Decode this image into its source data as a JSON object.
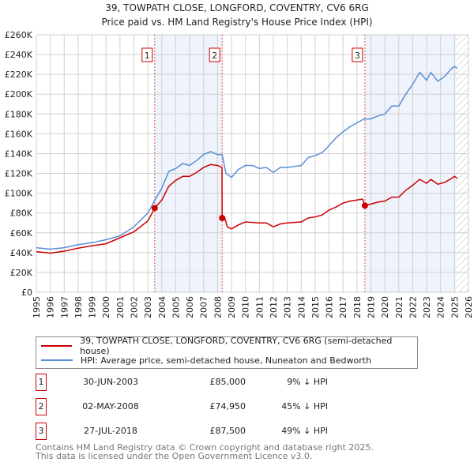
{
  "title": "39, TOWPATH CLOSE, LONGFORD, COVENTRY, CV6 6RG",
  "subtitle": "Price paid vs. HM Land Registry's House Price Index (HPI)",
  "chart_data": {
    "type": "line",
    "ylim": [
      0,
      260000
    ],
    "xlim": [
      1995,
      2026
    ],
    "y_ticks": [
      {
        "v": 0,
        "label": "£0"
      },
      {
        "v": 20000,
        "label": "£20K"
      },
      {
        "v": 40000,
        "label": "£40K"
      },
      {
        "v": 60000,
        "label": "£60K"
      },
      {
        "v": 80000,
        "label": "£80K"
      },
      {
        "v": 100000,
        "label": "£100K"
      },
      {
        "v": 120000,
        "label": "£120K"
      },
      {
        "v": 140000,
        "label": "£140K"
      },
      {
        "v": 160000,
        "label": "£160K"
      },
      {
        "v": 180000,
        "label": "£180K"
      },
      {
        "v": 200000,
        "label": "£200K"
      },
      {
        "v": 220000,
        "label": "£220K"
      },
      {
        "v": 240000,
        "label": "£240K"
      },
      {
        "v": 260000,
        "label": "£260K"
      }
    ],
    "x_ticks": [
      "1995",
      "1996",
      "1997",
      "1998",
      "1999",
      "2000",
      "2001",
      "2002",
      "2003",
      "2004",
      "2005",
      "2006",
      "2007",
      "2008",
      "2009",
      "2010",
      "2011",
      "2012",
      "2013",
      "2014",
      "2015",
      "2016",
      "2017",
      "2018",
      "2019",
      "2020",
      "2021",
      "2022",
      "2023",
      "2024",
      "2025",
      "2026"
    ],
    "grid": true,
    "shaded_ranges": [
      [
        2003.49,
        2008.33
      ],
      [
        2018.57,
        2025.1
      ]
    ],
    "hatched_from": 2025.1,
    "series": [
      {
        "name": "39, TOWPATH CLOSE, LONGFORD, COVENTRY, CV6 6RG (semi-detached house)",
        "color": "#cc0000",
        "points": [
          [
            1995,
            41000
          ],
          [
            1996,
            39500
          ],
          [
            1997,
            41500
          ],
          [
            1998,
            44500
          ],
          [
            1999,
            47000
          ],
          [
            2000,
            49000
          ],
          [
            2001,
            55000
          ],
          [
            2002,
            61000
          ],
          [
            2003,
            72000
          ],
          [
            2003.49,
            85000
          ],
          [
            2004,
            93000
          ],
          [
            2004.5,
            107000
          ],
          [
            2005,
            113000
          ],
          [
            2005.5,
            117000
          ],
          [
            2006,
            117000
          ],
          [
            2006.5,
            121000
          ],
          [
            2007,
            126000
          ],
          [
            2007.5,
            129000
          ],
          [
            2008,
            128000
          ],
          [
            2008.32,
            126000
          ],
          [
            2008.33,
            74950
          ],
          [
            2008.5,
            76000
          ],
          [
            2008.7,
            66000
          ],
          [
            2009,
            64000
          ],
          [
            2009.5,
            68000
          ],
          [
            2010,
            71000
          ],
          [
            2011,
            70000
          ],
          [
            2011.5,
            70000
          ],
          [
            2012,
            66000
          ],
          [
            2012.5,
            69000
          ],
          [
            2013,
            70000
          ],
          [
            2014,
            71000
          ],
          [
            2014.5,
            75000
          ],
          [
            2015,
            76000
          ],
          [
            2015.5,
            78000
          ],
          [
            2016,
            83000
          ],
          [
            2016.5,
            86000
          ],
          [
            2017,
            90000
          ],
          [
            2017.5,
            92000
          ],
          [
            2018.4,
            94000
          ],
          [
            2018.57,
            87500
          ],
          [
            2019,
            89000
          ],
          [
            2019.5,
            91000
          ],
          [
            2020,
            92000
          ],
          [
            2020.5,
            96000
          ],
          [
            2021,
            96000
          ],
          [
            2021.5,
            103000
          ],
          [
            2022,
            108000
          ],
          [
            2022.5,
            114000
          ],
          [
            2023,
            110000
          ],
          [
            2023.3,
            114000
          ],
          [
            2023.8,
            109000
          ],
          [
            2024.3,
            111000
          ],
          [
            2024.8,
            115000
          ],
          [
            2025,
            117000
          ],
          [
            2025.2,
            115000
          ]
        ]
      },
      {
        "name": "HPI: Average price, semi-detached house, Nuneaton and Bedworth",
        "color": "#5b8fd6",
        "points": [
          [
            1995,
            45000
          ],
          [
            1996,
            43500
          ],
          [
            1997,
            45000
          ],
          [
            1998,
            48000
          ],
          [
            1999,
            50000
          ],
          [
            2000,
            53000
          ],
          [
            2001,
            57000
          ],
          [
            2002,
            66000
          ],
          [
            2003,
            80000
          ],
          [
            2003.5,
            93000
          ],
          [
            2004,
            105000
          ],
          [
            2004.5,
            122000
          ],
          [
            2005,
            125000
          ],
          [
            2005.5,
            130000
          ],
          [
            2006,
            128000
          ],
          [
            2006.5,
            133000
          ],
          [
            2007,
            139000
          ],
          [
            2007.5,
            142000
          ],
          [
            2008,
            139000
          ],
          [
            2008.33,
            139000
          ],
          [
            2008.6,
            120000
          ],
          [
            2009,
            116000
          ],
          [
            2009.5,
            124000
          ],
          [
            2010,
            128000
          ],
          [
            2010.5,
            128000
          ],
          [
            2011,
            125000
          ],
          [
            2011.5,
            126000
          ],
          [
            2012,
            121000
          ],
          [
            2012.5,
            126000
          ],
          [
            2013,
            126000
          ],
          [
            2013.5,
            127000
          ],
          [
            2014,
            128000
          ],
          [
            2014.5,
            136000
          ],
          [
            2015,
            138000
          ],
          [
            2015.5,
            141000
          ],
          [
            2016,
            148000
          ],
          [
            2016.5,
            156000
          ],
          [
            2017,
            162000
          ],
          [
            2017.5,
            167000
          ],
          [
            2018,
            171000
          ],
          [
            2018.5,
            175000
          ],
          [
            2019,
            175000
          ],
          [
            2019.5,
            178000
          ],
          [
            2020,
            180000
          ],
          [
            2020.5,
            188000
          ],
          [
            2021,
            188000
          ],
          [
            2021.5,
            200000
          ],
          [
            2022,
            210000
          ],
          [
            2022.5,
            222000
          ],
          [
            2023,
            214000
          ],
          [
            2023.3,
            222000
          ],
          [
            2023.8,
            213000
          ],
          [
            2024.3,
            218000
          ],
          [
            2024.8,
            226000
          ],
          [
            2025,
            228000
          ],
          [
            2025.2,
            226000
          ]
        ]
      }
    ],
    "sales": [
      {
        "label": "1",
        "x": 2003.49,
        "y": 85000
      },
      {
        "label": "2",
        "x": 2008.33,
        "y": 74950
      },
      {
        "label": "3",
        "x": 2018.57,
        "y": 87500
      }
    ]
  },
  "legend": {
    "items": [
      {
        "label": "39, TOWPATH CLOSE, LONGFORD, COVENTRY, CV6 6RG (semi-detached house)",
        "color": "#cc0000"
      },
      {
        "label": "HPI: Average price, semi-detached house, Nuneaton and Bedworth",
        "color": "#5b8fd6"
      }
    ]
  },
  "transactions": [
    {
      "num": "1",
      "date": "30-JUN-2003",
      "price": "£85,000",
      "hpi": "9% ↓ HPI"
    },
    {
      "num": "2",
      "date": "02-MAY-2008",
      "price": "£74,950",
      "hpi": "45% ↓ HPI"
    },
    {
      "num": "3",
      "date": "27-JUL-2018",
      "price": "£87,500",
      "hpi": "49% ↓ HPI"
    }
  ],
  "footer": {
    "line1": "Contains HM Land Registry data © Crown copyright and database right 2025.",
    "line2": "This data is licensed under the Open Government Licence v3.0."
  }
}
